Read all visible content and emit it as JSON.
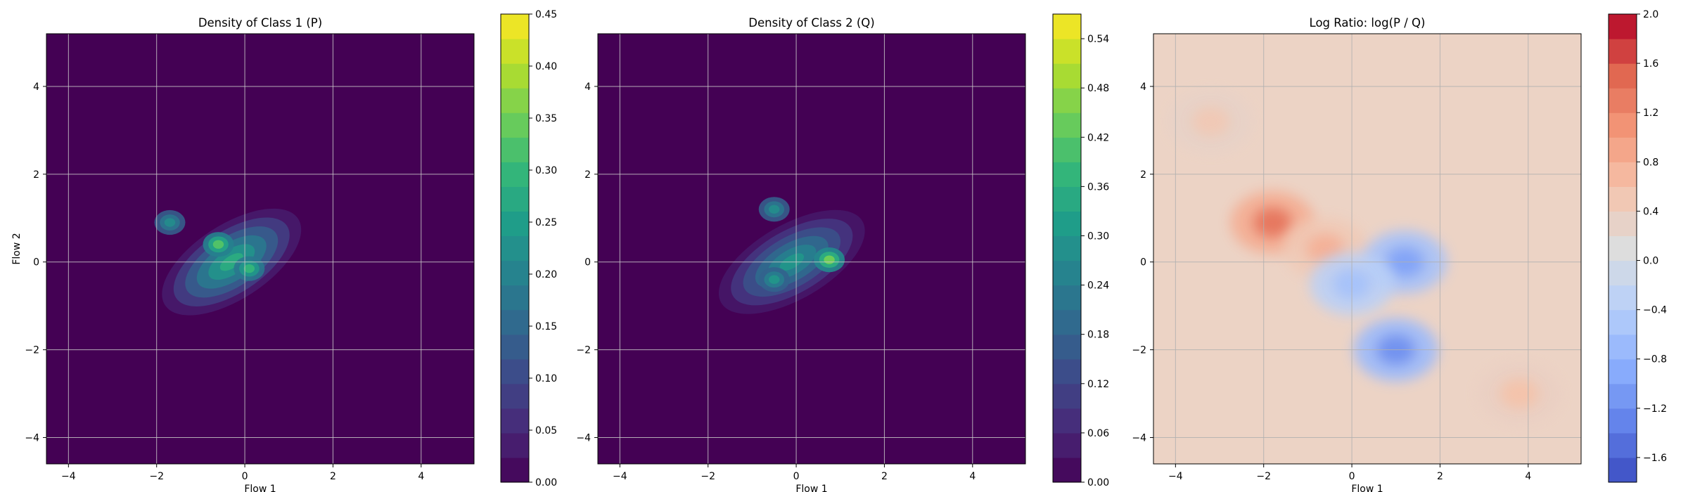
{
  "chart_data": [
    {
      "type": "heatmap",
      "subtype": "filled-contour",
      "title": "Density of Class 1 (P)",
      "xlabel": "Flow 1",
      "ylabel": "Flow 2",
      "xlim": [
        -4.5,
        5.2
      ],
      "ylim": [
        -4.6,
        5.2
      ],
      "xticks": [
        -4,
        -2,
        0,
        2,
        4
      ],
      "yticks": [
        -4,
        -2,
        0,
        2,
        4
      ],
      "grid": true,
      "colormap": "viridis",
      "background_color": "#440154",
      "colorbar": {
        "range": [
          0.0,
          0.45
        ],
        "ticks": [
          0.0,
          0.05,
          0.1,
          0.15,
          0.2,
          0.25,
          0.3,
          0.35,
          0.4,
          0.45
        ],
        "tick_labels": [
          "0.00",
          "0.05",
          "0.10",
          "0.15",
          "0.20",
          "0.25",
          "0.30",
          "0.35",
          "0.40",
          "0.45"
        ],
        "levels": 19
      },
      "features": [
        {
          "kind": "cluster",
          "center": [
            -0.3,
            0.0
          ],
          "extent": [
            3.6,
            1.7
          ],
          "rotation_deg": -33,
          "peak": 0.28
        },
        {
          "kind": "peak",
          "center": [
            -0.6,
            0.4
          ],
          "value": 0.33
        },
        {
          "kind": "peak",
          "center": [
            0.1,
            -0.15
          ],
          "value": 0.3
        },
        {
          "kind": "peak",
          "center": [
            -1.7,
            0.9
          ],
          "value": 0.22
        }
      ]
    },
    {
      "type": "heatmap",
      "subtype": "filled-contour",
      "title": "Density of Class 2 (Q)",
      "xlabel": "Flow 1",
      "ylabel": "",
      "xlim": [
        -4.5,
        5.2
      ],
      "ylim": [
        -4.6,
        5.2
      ],
      "xticks": [
        -4,
        -2,
        0,
        2,
        4
      ],
      "yticks": [
        -4,
        -2,
        0,
        2,
        4
      ],
      "grid": true,
      "colormap": "viridis",
      "background_color": "#440154",
      "colorbar": {
        "range": [
          0.0,
          0.57
        ],
        "ticks": [
          0.0,
          0.06,
          0.12,
          0.18,
          0.24,
          0.3,
          0.36,
          0.42,
          0.48,
          0.54
        ],
        "tick_labels": [
          "0.00",
          "0.06",
          "0.12",
          "0.18",
          "0.24",
          "0.30",
          "0.36",
          "0.42",
          "0.48",
          "0.54"
        ],
        "levels": 19
      },
      "features": [
        {
          "kind": "cluster",
          "center": [
            -0.1,
            0.0
          ],
          "extent": [
            3.7,
            1.7
          ],
          "rotation_deg": -30,
          "peak": 0.3
        },
        {
          "kind": "peak",
          "center": [
            0.75,
            0.05
          ],
          "value": 0.45
        },
        {
          "kind": "peak",
          "center": [
            -0.5,
            1.2
          ],
          "value": 0.28
        },
        {
          "kind": "peak",
          "center": [
            -0.5,
            -0.4
          ],
          "value": 0.3
        }
      ]
    },
    {
      "type": "heatmap",
      "subtype": "filled-contour",
      "title": "Log Ratio: log(P / Q)",
      "xlabel": "Flow 1",
      "ylabel": "",
      "xlim": [
        -4.5,
        5.2
      ],
      "ylim": [
        -4.6,
        5.2
      ],
      "xticks": [
        -4,
        -2,
        0,
        2,
        4
      ],
      "yticks": [
        -4,
        -2,
        0,
        2,
        4
      ],
      "grid": true,
      "colormap": "coolwarm",
      "background_color": "#ecd3c5",
      "colorbar": {
        "range": [
          -1.8,
          2.0
        ],
        "ticks": [
          -1.6,
          -1.2,
          -0.8,
          -0.4,
          0.0,
          0.4,
          0.8,
          1.2,
          1.6,
          2.0
        ],
        "tick_labels": [
          "-1.6",
          "-1.2",
          "-0.8",
          "-0.4",
          "0.0",
          "0.4",
          "0.8",
          "1.2",
          "1.6",
          "2.0"
        ],
        "levels": 19
      },
      "features": [
        {
          "kind": "region",
          "center": [
            -1.8,
            0.9
          ],
          "value": 1.4
        },
        {
          "kind": "region",
          "center": [
            -0.6,
            0.3
          ],
          "value": 0.8
        },
        {
          "kind": "region",
          "center": [
            1.0,
            -2.0
          ],
          "value": -1.2
        },
        {
          "kind": "region",
          "center": [
            1.2,
            0.0
          ],
          "value": -1.0
        },
        {
          "kind": "region",
          "center": [
            0.0,
            -0.5
          ],
          "value": -0.6
        },
        {
          "kind": "region",
          "center": [
            -3.2,
            3.2
          ],
          "value": 0.5
        },
        {
          "kind": "region",
          "center": [
            3.8,
            -3.0
          ],
          "value": 0.6
        }
      ]
    }
  ]
}
